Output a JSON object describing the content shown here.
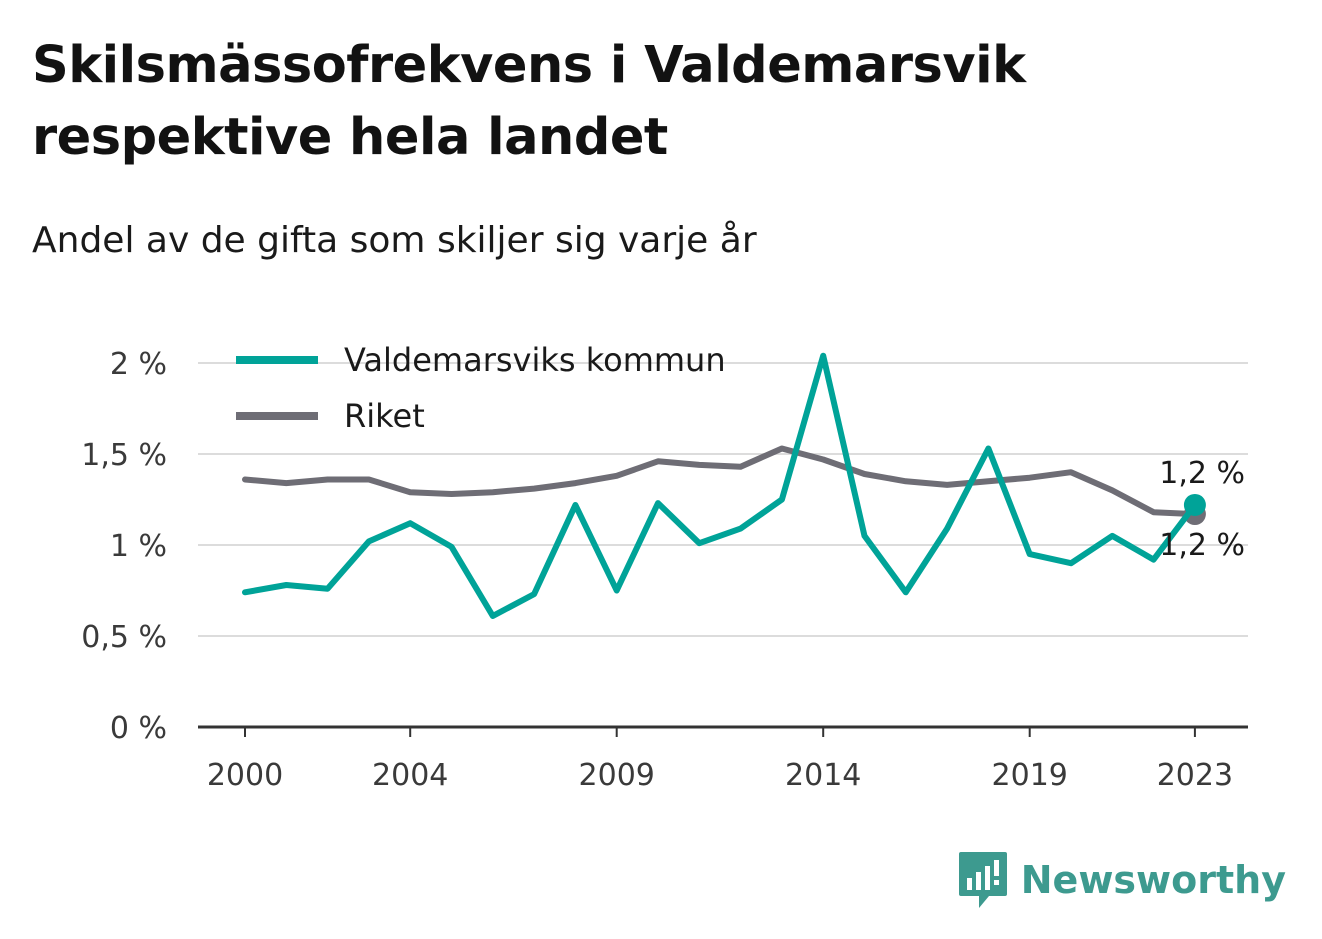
{
  "title": "Skilsmässofrekvens i Valdemarsvik respektive hela landet",
  "subtitle": "Andel av de gifta som skiljer sig varje år",
  "brand": {
    "name": "Newsworthy",
    "icon": "newsworthy-logo-icon",
    "color": "#3d9a8f"
  },
  "chart_data": {
    "type": "line",
    "x": [
      2000,
      2001,
      2002,
      2003,
      2004,
      2005,
      2006,
      2007,
      2008,
      2009,
      2010,
      2011,
      2012,
      2013,
      2014,
      2015,
      2016,
      2017,
      2018,
      2019,
      2020,
      2021,
      2022,
      2023
    ],
    "x_ticks": [
      "2000",
      "2004",
      "2009",
      "2014",
      "2019",
      "2023"
    ],
    "y_ticks": [
      "0 %",
      "0,5 %",
      "1 %",
      "1,5 %",
      "2 %"
    ],
    "y_tick_values": [
      0,
      0.5,
      1,
      1.5,
      2
    ],
    "ylim": [
      0,
      2
    ],
    "grid": "horizontal",
    "legend_position": "top-left",
    "series": [
      {
        "name": "Valdemarsviks kommun",
        "color": "#00a398",
        "values": [
          0.74,
          0.78,
          0.76,
          1.02,
          1.12,
          0.99,
          0.61,
          0.73,
          1.22,
          0.75,
          1.23,
          1.01,
          1.09,
          1.25,
          2.04,
          1.05,
          0.74,
          1.09,
          1.53,
          0.95,
          0.9,
          1.05,
          0.92,
          1.22
        ],
        "end_label": "1,2 %"
      },
      {
        "name": "Riket",
        "color": "#6e6d75",
        "values": [
          1.36,
          1.34,
          1.36,
          1.36,
          1.29,
          1.28,
          1.29,
          1.31,
          1.34,
          1.38,
          1.46,
          1.44,
          1.43,
          1.53,
          1.47,
          1.39,
          1.35,
          1.33,
          1.35,
          1.37,
          1.4,
          1.3,
          1.18,
          1.17
        ],
        "end_label": "1,2 %"
      }
    ]
  }
}
